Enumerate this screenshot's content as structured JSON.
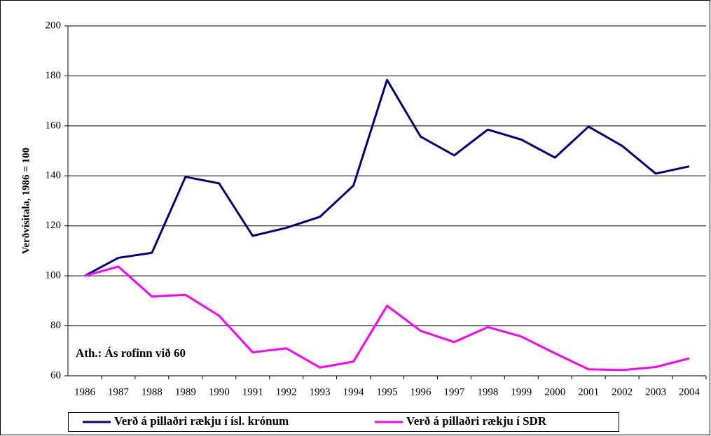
{
  "chart_data": {
    "type": "line",
    "y_label": "Verðvísitala, 1986 = 100",
    "annotation": "Ath.: Ás rofinn við 60",
    "categories": [
      "1986",
      "1987",
      "1988",
      "1989",
      "1990",
      "1991",
      "1992",
      "1993",
      "1994",
      "1995",
      "1996",
      "1997",
      "1998",
      "1999",
      "2000",
      "2001",
      "2002",
      "2003",
      "2004"
    ],
    "series": [
      {
        "name": "Verð á pillaðri rækju í ísl. krónum",
        "color": "#000080",
        "values": [
          100,
          107.2,
          109.2,
          139.6,
          137,
          116,
          119.2,
          123.6,
          136.1,
          178.4,
          155.7,
          148.2,
          158.5,
          154.5,
          147.3,
          159.7,
          152,
          140.9,
          143.8
        ]
      },
      {
        "name": "Verð á pillaðri rækju í SDR",
        "color": "#ff00ff",
        "values": [
          100,
          103.7,
          91.7,
          92.4,
          84,
          69.4,
          71,
          63.3,
          65.7,
          88,
          78,
          73.5,
          79.5,
          75.7,
          69,
          62.6,
          62.3,
          63.5,
          67
        ]
      }
    ],
    "ylim": [
      60,
      200
    ],
    "yticks": [
      60,
      80,
      100,
      120,
      140,
      160,
      180,
      200
    ],
    "grid": true
  }
}
